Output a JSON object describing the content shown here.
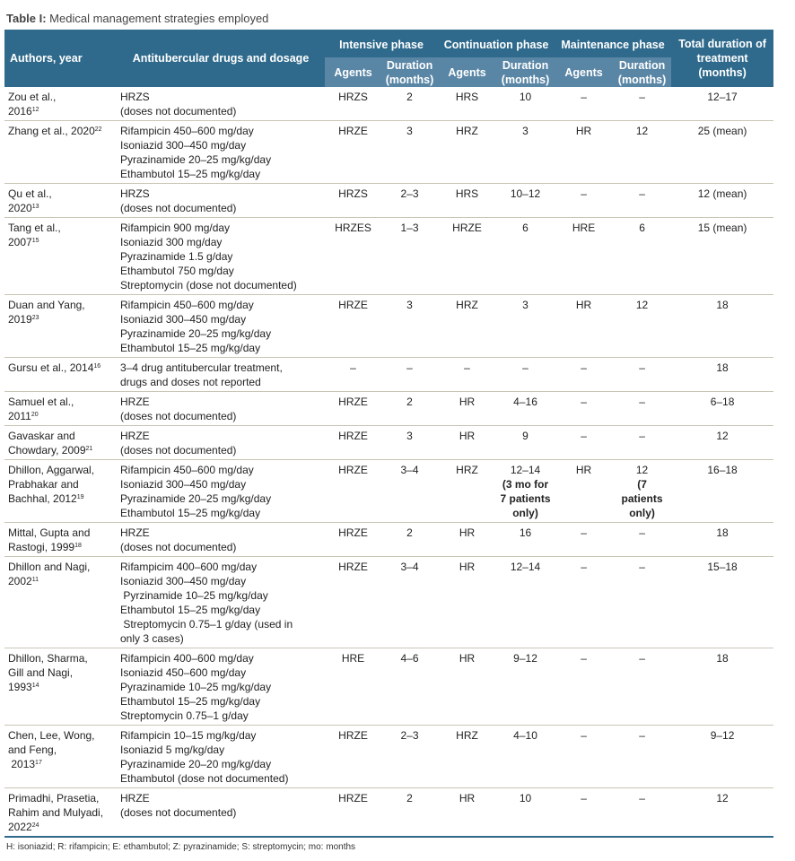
{
  "caption": {
    "label": "Table I:",
    "title": " Medical management strategies employed"
  },
  "headers": {
    "authors": "Authors, year",
    "drugs": "Antitubercular drugs and dosage",
    "intensive": "Intensive phase",
    "continuation": "Continuation phase",
    "maintenance": "Maintenance phase",
    "total": "Total duration of treatment (months)",
    "agents": "Agents",
    "duration": "Duration (months)"
  },
  "rows": [
    {
      "author": [
        "Zou et al.,",
        "2016"
      ],
      "ref": "12",
      "drugs": [
        "HRZS",
        "(doses not documented)"
      ],
      "cells": [
        "HRZS",
        "2",
        "HRS",
        "10",
        "–",
        "–",
        "12–17"
      ]
    },
    {
      "author": [
        "Zhang et al., 2020"
      ],
      "ref": "22",
      "drugs": [
        "Rifampicin 450–600 mg/day",
        "Isoniazid 300–450 mg/day",
        "Pyrazinamide 20–25 mg/kg/day",
        "Ethambutol 15–25 mg/kg/day"
      ],
      "cells": [
        "HRZE",
        "3",
        "HRZ",
        "3",
        "HR",
        "12",
        "25 (mean)"
      ]
    },
    {
      "author": [
        "Qu et al.,",
        "2020"
      ],
      "ref": "13",
      "drugs": [
        "HRZS",
        "(doses not documented)"
      ],
      "cells": [
        "HRZS",
        "2–3",
        "HRS",
        "10–12",
        "–",
        "–",
        "12 (mean)"
      ]
    },
    {
      "author": [
        "Tang et al.,",
        "2007"
      ],
      "ref": "15",
      "drugs": [
        "Rifampicin 900 mg/day",
        "Isoniazid 300 mg/day",
        "Pyrazinamide 1.5 g/day",
        "Ethambutol 750 mg/day",
        "Streptomycin (dose not documented)"
      ],
      "cells": [
        "HRZES",
        "1–3",
        "HRZE",
        "6",
        "HRE",
        "6",
        "15 (mean)"
      ]
    },
    {
      "author": [
        "Duan and Yang,",
        "2019"
      ],
      "ref": "23",
      "drugs": [
        "Rifampicin 450–600 mg/day",
        "Isoniazid 300–450 mg/day",
        "Pyrazinamide 20–25 mg/kg/day",
        "Ethambutol 15–25 mg/kg/day"
      ],
      "cells": [
        "HRZE",
        "3",
        "HRZ",
        "3",
        "HR",
        "12",
        "18"
      ]
    },
    {
      "author": [
        "Gursu et al., 2014"
      ],
      "ref": "16",
      "drugs": [
        "3–4 drug antitubercular treatment,",
        "drugs and doses not reported"
      ],
      "cells": [
        "–",
        "–",
        "–",
        "–",
        "–",
        "–",
        "18"
      ]
    },
    {
      "author": [
        "Samuel et al.,",
        "2011"
      ],
      "ref": "20",
      "drugs": [
        "HRZE",
        "(doses not documented)"
      ],
      "cells": [
        "HRZE",
        "2",
        "HR",
        "4–16",
        "–",
        "–",
        "6–18"
      ]
    },
    {
      "author": [
        "Gavaskar and",
        "Chowdary, 2009"
      ],
      "ref": "21",
      "drugs": [
        "HRZE",
        "(doses not documented)"
      ],
      "cells": [
        "HRZE",
        "3",
        "HR",
        "9",
        "–",
        "–",
        "12"
      ]
    },
    {
      "author": [
        "Dhillon, Aggarwal,",
        "Prabhakar and",
        "Bachhal, 2012"
      ],
      "ref": "19",
      "drugs": [
        "Rifampicin 450–600 mg/day",
        "Isoniazid 300–450 mg/day",
        "Pyrazinamide 20–25 mg/kg/day",
        "Ethambutol 15–25 mg/kg/day"
      ],
      "cells": [
        "HRZE",
        "3–4",
        "HRZ",
        "12–14",
        "HR",
        "12",
        "16–18"
      ],
      "notes": {
        "3": [
          "(3 mo for",
          "7 patients",
          "only)"
        ],
        "5": [
          "(7",
          "patients",
          "only)"
        ]
      }
    },
    {
      "author": [
        "Mittal, Gupta and",
        "Rastogi, 1999"
      ],
      "ref": "18",
      "drugs": [
        "HRZE",
        "(doses not documented)"
      ],
      "cells": [
        "HRZE",
        "2",
        "HR",
        "16",
        "–",
        "–",
        "18"
      ]
    },
    {
      "author": [
        "Dhillon and Nagi,",
        "2002"
      ],
      "ref": "11",
      "drugs": [
        "Rifampicim 400–600 mg/day",
        "Isoniazid 300–450 mg/day",
        " Pyrzinamide 10–25 mg/kg/day",
        "Ethambutol 15–25 mg/kg/day",
        " Streptomycin 0.75–1 g/day (used in",
        "only 3 cases)"
      ],
      "cells": [
        "HRZE",
        "3–4",
        "HR",
        "12–14",
        "–",
        "–",
        "15–18"
      ]
    },
    {
      "author": [
        "Dhillon, Sharma,",
        "Gill and Nagi,",
        "1993"
      ],
      "ref": "14",
      "drugs": [
        "Rifampicin 400–600 mg/day",
        "Isoniazid 450–600 mg/day",
        "Pyrazinamide 10–25 mg/kg/day",
        "Ethambutol 15–25 mg/kg/day",
        "Streptomycin 0.75–1 g/day"
      ],
      "cells": [
        "HRE",
        "4–6",
        "HR",
        "9–12",
        "–",
        "–",
        "18"
      ]
    },
    {
      "author": [
        "Chen, Lee, Wong,",
        "and Feng,",
        " 2013"
      ],
      "ref": "17",
      "drugs": [
        "Rifampicin 10–15 mg/kg/day",
        "Isoniazid 5 mg/kg/day",
        "Pyrazinamide 20–20 mg/kg/day",
        "Ethambutol (dose not documented)"
      ],
      "cells": [
        "HRZE",
        "2–3",
        "HRZ",
        "4–10",
        "–",
        "–",
        "9–12"
      ]
    },
    {
      "author": [
        "Primadhi, Prasetia,",
        "Rahim and Mulyadi,",
        "2022"
      ],
      "ref": "24",
      "drugs": [
        "HRZE",
        "(doses not documented)"
      ],
      "cells": [
        "HRZE",
        "2",
        "HR",
        "10",
        "–",
        "–",
        "12"
      ]
    }
  ],
  "footnote": "H: isoniazid; R: rifampicin; E: ethambutol; Z: pyrazinamide; S: streptomycin; mo: months",
  "colors": {
    "header": "#2f6a8c",
    "subheader": "#5a86a6",
    "rule": "#c9c5b5"
  }
}
